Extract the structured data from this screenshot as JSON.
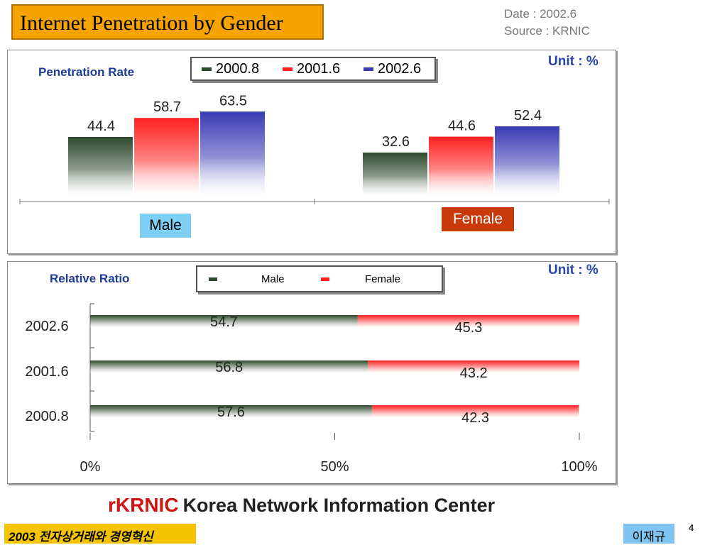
{
  "header": {
    "title": "Internet Penetration by Gender",
    "date_line": "Date : 2002.6",
    "source_line": "Source : KRNIC"
  },
  "chart_data": [
    {
      "type": "bar",
      "title": "Penetration Rate",
      "unit": "Unit : %",
      "categories": [
        "Male",
        "Female"
      ],
      "series": [
        {
          "name": "2000.8",
          "values": [
            44.4,
            32.6
          ],
          "color": "#2e4a2e"
        },
        {
          "name": "2001.6",
          "values": [
            58.7,
            44.6
          ],
          "color": "#ff2020"
        },
        {
          "name": "2002.6",
          "values": [
            63.5,
            52.4
          ],
          "color": "#3a3ab4"
        }
      ],
      "category_label_colors": {
        "Male": "#7fd0f5",
        "Female": "#c83a0a"
      }
    },
    {
      "type": "bar",
      "orientation": "horizontal-stacked-100",
      "title": "Relative Ratio",
      "unit": "Unit : %",
      "categories": [
        "2002.6",
        "2001.6",
        "2000.8"
      ],
      "series": [
        {
          "name": "Male",
          "values": [
            54.7,
            56.8,
            57.6
          ],
          "color": "#2e4a2e"
        },
        {
          "name": "Female",
          "values": [
            45.3,
            43.2,
            42.3
          ],
          "color": "#ff2020"
        }
      ],
      "x_ticks": [
        "0%",
        "50%",
        "100%"
      ]
    }
  ],
  "footer": {
    "logo_mark": "rKRNIC",
    "org_name": "Korea Network Information Center",
    "course": "2003 전자상거래와 경영혁신",
    "author": "이재규",
    "page": "4"
  }
}
